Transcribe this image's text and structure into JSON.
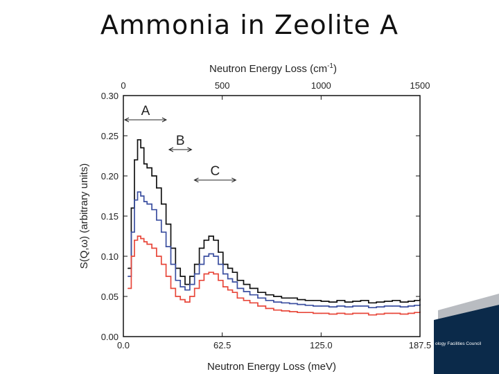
{
  "slide": {
    "title": "Ammonia in Zeolite A"
  },
  "footer": {
    "org_text": "ology Facilities Council",
    "navy": "#0b2a4a",
    "gray": "#b9bcc1"
  },
  "chart_data": {
    "type": "line",
    "title": "",
    "xlabel": "Neutron Energy Loss (meV)",
    "x2label": "Neutron Energy Loss (cm-1)",
    "ylabel": "S(Q,ω) (arbitrary units)",
    "xlim": [
      0,
      187.5
    ],
    "x2lim": [
      0,
      1500
    ],
    "ylim": [
      0,
      0.3
    ],
    "xticks": [
      0.0,
      62.5,
      125.0,
      187.5
    ],
    "xtick_labels": [
      "0.0",
      "62.5",
      "125.0",
      "187.5"
    ],
    "x2ticks": [
      0,
      500,
      1000,
      1500
    ],
    "x2tick_labels": [
      "0",
      "500",
      "1000",
      "1500"
    ],
    "yticks": [
      0,
      0.05,
      0.1,
      0.15,
      0.2,
      0.25,
      0.3
    ],
    "ytick_labels": [
      "0.00",
      "0.05",
      "0.10",
      "0.15",
      "0.20",
      "0.25",
      "0.30"
    ],
    "grid": false,
    "annotations": [
      {
        "label": "A",
        "x_start": 0,
        "x_end": 28
      },
      {
        "label": "B",
        "x_start": 28,
        "x_end": 44
      },
      {
        "label": "C",
        "x_start": 44,
        "x_end": 72
      }
    ],
    "series": [
      {
        "color": "#111111",
        "x": [
          3,
          5,
          7,
          9,
          11,
          13,
          15,
          18,
          21,
          24,
          27,
          30,
          33,
          36,
          39,
          42,
          45,
          48,
          51,
          54,
          57,
          60,
          63,
          66,
          69,
          72,
          76,
          80,
          85,
          90,
          95,
          100,
          105,
          110,
          115,
          120,
          125,
          130,
          135,
          140,
          145,
          150,
          155,
          160,
          165,
          170,
          175,
          180,
          184,
          187.5
        ],
        "y": [
          0.085,
          0.16,
          0.22,
          0.245,
          0.235,
          0.215,
          0.21,
          0.2,
          0.185,
          0.165,
          0.14,
          0.11,
          0.085,
          0.075,
          0.065,
          0.075,
          0.09,
          0.11,
          0.12,
          0.125,
          0.12,
          0.105,
          0.09,
          0.085,
          0.08,
          0.07,
          0.065,
          0.06,
          0.055,
          0.052,
          0.05,
          0.048,
          0.048,
          0.046,
          0.045,
          0.045,
          0.044,
          0.043,
          0.045,
          0.043,
          0.044,
          0.045,
          0.042,
          0.043,
          0.044,
          0.045,
          0.043,
          0.044,
          0.045,
          0.047
        ]
      },
      {
        "color": "#3b4fa0",
        "x": [
          3,
          5,
          7,
          9,
          11,
          13,
          15,
          18,
          21,
          24,
          27,
          30,
          33,
          36,
          39,
          42,
          45,
          48,
          51,
          54,
          57,
          60,
          63,
          66,
          69,
          72,
          76,
          80,
          85,
          90,
          95,
          100,
          105,
          110,
          115,
          120,
          125,
          130,
          135,
          140,
          145,
          150,
          155,
          160,
          165,
          170,
          175,
          180,
          184,
          187.5
        ],
        "y": [
          0.075,
          0.13,
          0.17,
          0.18,
          0.175,
          0.168,
          0.165,
          0.158,
          0.145,
          0.13,
          0.112,
          0.09,
          0.07,
          0.062,
          0.058,
          0.065,
          0.078,
          0.09,
          0.1,
          0.103,
          0.1,
          0.09,
          0.078,
          0.072,
          0.068,
          0.06,
          0.056,
          0.052,
          0.048,
          0.045,
          0.043,
          0.042,
          0.041,
          0.04,
          0.039,
          0.038,
          0.038,
          0.037,
          0.038,
          0.037,
          0.038,
          0.038,
          0.036,
          0.037,
          0.038,
          0.038,
          0.037,
          0.038,
          0.039,
          0.04
        ]
      },
      {
        "color": "#e8473a",
        "x": [
          3,
          5,
          7,
          9,
          11,
          13,
          15,
          18,
          21,
          24,
          27,
          30,
          33,
          36,
          39,
          42,
          45,
          48,
          51,
          54,
          57,
          60,
          63,
          66,
          69,
          72,
          76,
          80,
          85,
          90,
          95,
          100,
          105,
          110,
          115,
          120,
          125,
          130,
          135,
          140,
          145,
          150,
          155,
          160,
          165,
          170,
          175,
          180,
          184,
          187.5
        ],
        "y": [
          0.06,
          0.1,
          0.12,
          0.125,
          0.122,
          0.118,
          0.115,
          0.11,
          0.1,
          0.09,
          0.075,
          0.06,
          0.05,
          0.046,
          0.043,
          0.05,
          0.06,
          0.07,
          0.078,
          0.08,
          0.078,
          0.07,
          0.062,
          0.058,
          0.055,
          0.048,
          0.045,
          0.042,
          0.038,
          0.035,
          0.033,
          0.032,
          0.031,
          0.03,
          0.03,
          0.029,
          0.029,
          0.028,
          0.029,
          0.028,
          0.029,
          0.029,
          0.027,
          0.028,
          0.029,
          0.029,
          0.028,
          0.029,
          0.03,
          0.031
        ]
      }
    ]
  }
}
